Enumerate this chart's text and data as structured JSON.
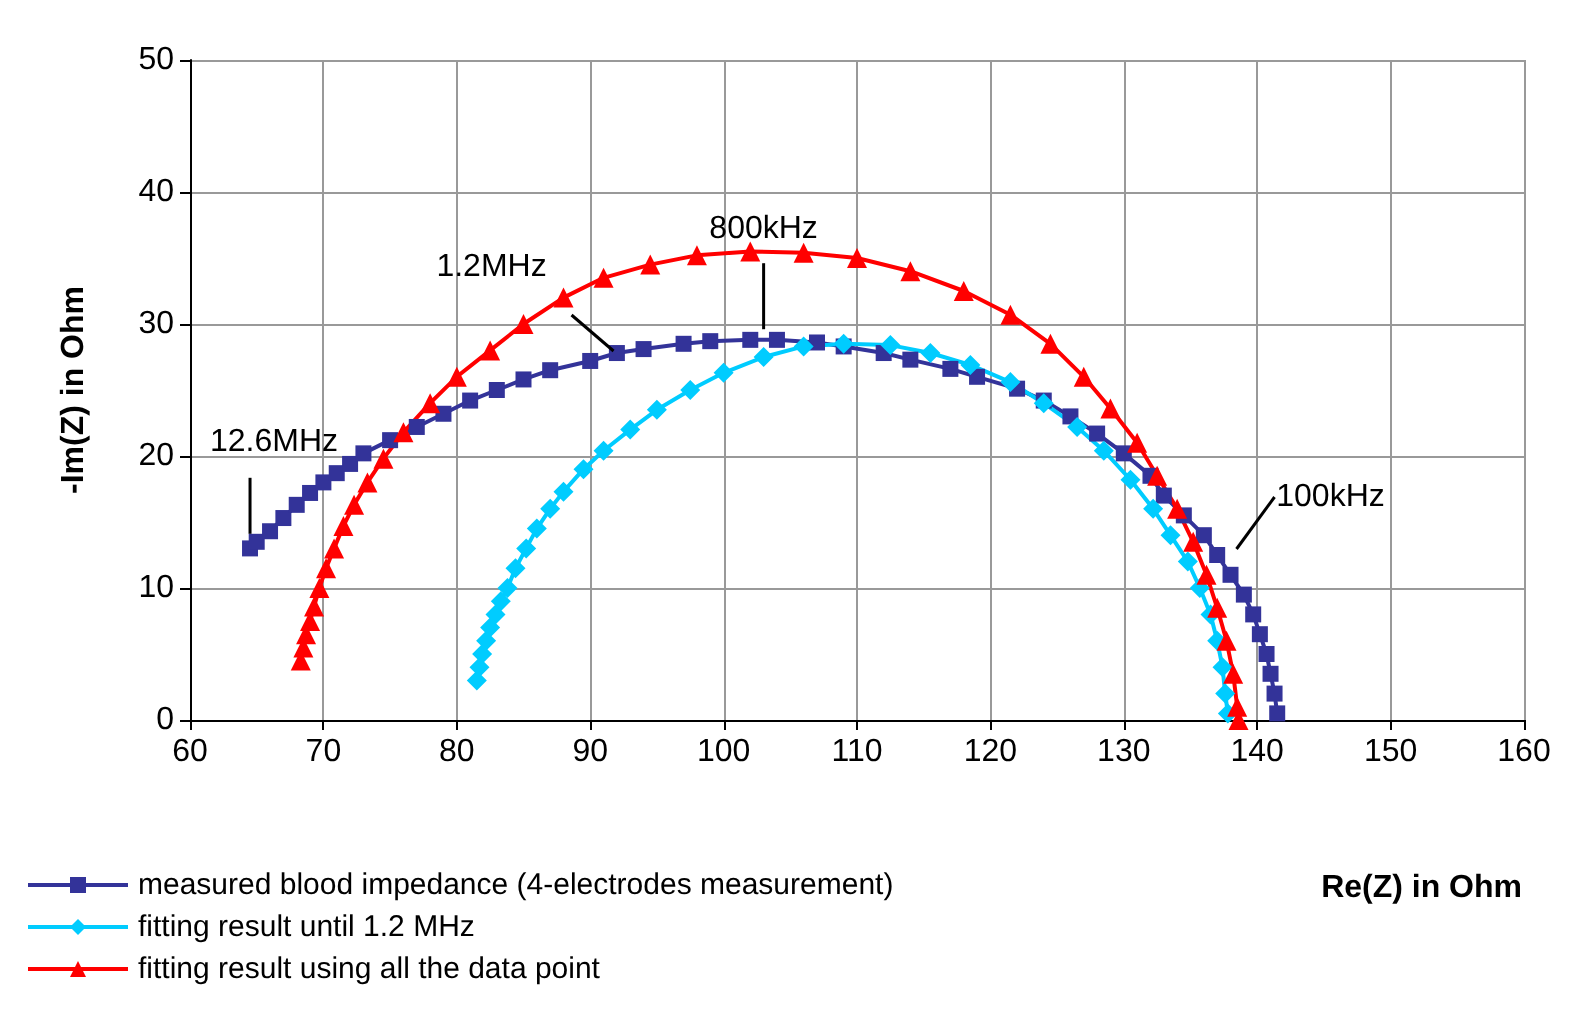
{
  "chart_data": {
    "type": "line",
    "xlabel": "Re(Z) in Ohm",
    "ylabel": "-Im(Z) in Ohm",
    "xlim": [
      60,
      160
    ],
    "xticks": [
      60,
      70,
      80,
      90,
      100,
      110,
      120,
      130,
      140,
      150,
      160
    ],
    "ylim": [
      0,
      50
    ],
    "yticks": [
      0,
      10,
      20,
      30,
      40,
      50
    ],
    "grid": true,
    "legend": "bottom left",
    "line_style": "solid",
    "series": [
      {
        "name": "measured blood impedance (4-electrodes measurement)",
        "color": "#333399",
        "marker": "square",
        "x": [
          64.5,
          65,
          66,
          67,
          68,
          69,
          70,
          71,
          72,
          73,
          75,
          77,
          79,
          81,
          83,
          85,
          87,
          90,
          92,
          94,
          97,
          99,
          102,
          104,
          107,
          109,
          112,
          114,
          117,
          119,
          122,
          124,
          126,
          128,
          130,
          132,
          133,
          134.5,
          136,
          137,
          138,
          139,
          139.7,
          140.2,
          140.7,
          141,
          141.3,
          141.5
        ],
        "values": [
          13,
          13.5,
          14.3,
          15.3,
          16.3,
          17.2,
          18,
          18.7,
          19.4,
          20.2,
          21.2,
          22.2,
          23.2,
          24.2,
          25,
          25.8,
          26.5,
          27.2,
          27.8,
          28.1,
          28.5,
          28.7,
          28.8,
          28.8,
          28.6,
          28.3,
          27.8,
          27.3,
          26.6,
          26,
          25.1,
          24.2,
          23,
          21.7,
          20.2,
          18.5,
          17,
          15.5,
          14,
          12.5,
          11,
          9.5,
          8,
          6.5,
          5,
          3.5,
          2,
          0.5
        ]
      },
      {
        "name": "fitting result until 1.2 MHz",
        "color": "#00ccff",
        "marker": "diamond",
        "x": [
          81.5,
          81.7,
          81.9,
          82.2,
          82.5,
          82.9,
          83.3,
          83.8,
          84.4,
          85.2,
          86,
          87,
          88,
          89.5,
          91,
          93,
          95,
          97.5,
          100,
          103,
          106,
          109,
          112.5,
          115.5,
          118.5,
          121.5,
          124,
          126.5,
          128.5,
          130.5,
          132.2,
          133.5,
          134.8,
          135.7,
          136.5,
          137,
          137.4,
          137.6,
          137.8
        ],
        "values": [
          3,
          4,
          5,
          6,
          7,
          8,
          9,
          10,
          11.5,
          13,
          14.5,
          16,
          17.3,
          19,
          20.4,
          22,
          23.5,
          25,
          26.3,
          27.5,
          28.3,
          28.5,
          28.4,
          27.8,
          26.9,
          25.6,
          24,
          22.2,
          20.4,
          18.2,
          16,
          14,
          12,
          10,
          8,
          6,
          4,
          2,
          0.5
        ]
      },
      {
        "name": "fitting result using all the data point",
        "color": "#ff0000",
        "marker": "triangle",
        "x": [
          68.3,
          68.5,
          68.7,
          69,
          69.3,
          69.7,
          70.2,
          70.8,
          71.5,
          72.3,
          73.3,
          74.5,
          76,
          78,
          80,
          82.5,
          85,
          88,
          91,
          94.5,
          98,
          102,
          106,
          110,
          114,
          118,
          121.5,
          124.5,
          127,
          129,
          131,
          132.5,
          134,
          135.2,
          136.2,
          137,
          137.7,
          138.2,
          138.5,
          138.6
        ],
        "values": [
          4.5,
          5.5,
          6.5,
          7.5,
          8.6,
          10,
          11.5,
          13,
          14.7,
          16.3,
          18,
          19.8,
          21.8,
          24,
          26,
          28,
          30,
          32,
          33.5,
          34.5,
          35.2,
          35.5,
          35.4,
          35,
          34,
          32.5,
          30.7,
          28.5,
          26,
          23.6,
          21,
          18.5,
          16,
          13.5,
          11,
          8.5,
          6,
          3.5,
          1,
          0
        ]
      }
    ],
    "annotations": [
      {
        "text": "12.6MHz",
        "x": 64.5,
        "y": 13.5
      },
      {
        "text": "1.2MHz",
        "x": 92.5,
        "y": 27.5
      },
      {
        "text": "800kHz",
        "x": 103,
        "y": 29
      },
      {
        "text": "100kHz",
        "x": 138,
        "y": 12.5
      }
    ]
  }
}
